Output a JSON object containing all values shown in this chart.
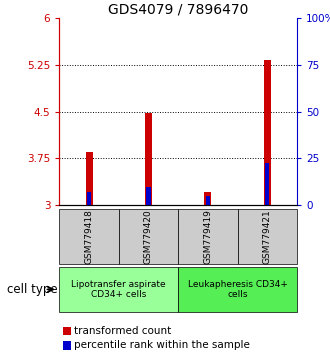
{
  "title": "GDS4079 / 7896470",
  "samples": [
    "GSM779418",
    "GSM779420",
    "GSM779419",
    "GSM779421"
  ],
  "transformed_counts": [
    3.85,
    4.47,
    3.22,
    5.32
  ],
  "percentile_ranks": [
    7.0,
    10.0,
    5.0,
    22.5
  ],
  "ylim_left": [
    3.0,
    6.0
  ],
  "yticks_left": [
    3.0,
    3.75,
    4.5,
    5.25,
    6.0
  ],
  "ytick_labels_left": [
    "3",
    "3.75",
    "4.5",
    "5.25",
    "6"
  ],
  "ylim_right": [
    0,
    100
  ],
  "yticks_right": [
    0,
    25,
    50,
    75,
    100
  ],
  "ytick_labels_right": [
    "0",
    "25",
    "50",
    "75",
    "100%"
  ],
  "grid_lines": [
    3.75,
    4.5,
    5.25
  ],
  "bar_width": 0.12,
  "blue_bar_width": 0.07,
  "color_red": "#cc0000",
  "color_blue": "#0000cc",
  "cell_groups": [
    {
      "label": "Lipotransfer aspirate\nCD34+ cells",
      "samples": [
        0,
        1
      ],
      "color": "#99ff99"
    },
    {
      "label": "Leukapheresis CD34+\ncells",
      "samples": [
        2,
        3
      ],
      "color": "#55ee55"
    }
  ],
  "cell_type_label": "cell type",
  "legend_items": [
    {
      "color": "#cc0000",
      "label": "transformed count"
    },
    {
      "color": "#0000cc",
      "label": "percentile rank within the sample"
    }
  ],
  "bar_base": 3.0,
  "left_axis_color": "#cc0000",
  "right_axis_color": "#0000cc",
  "title_fontsize": 10,
  "tick_fontsize": 7.5,
  "sample_label_fontsize": 6.5,
  "group_label_fontsize": 6.5,
  "legend_fontsize": 7.5,
  "cell_type_fontsize": 8.5
}
